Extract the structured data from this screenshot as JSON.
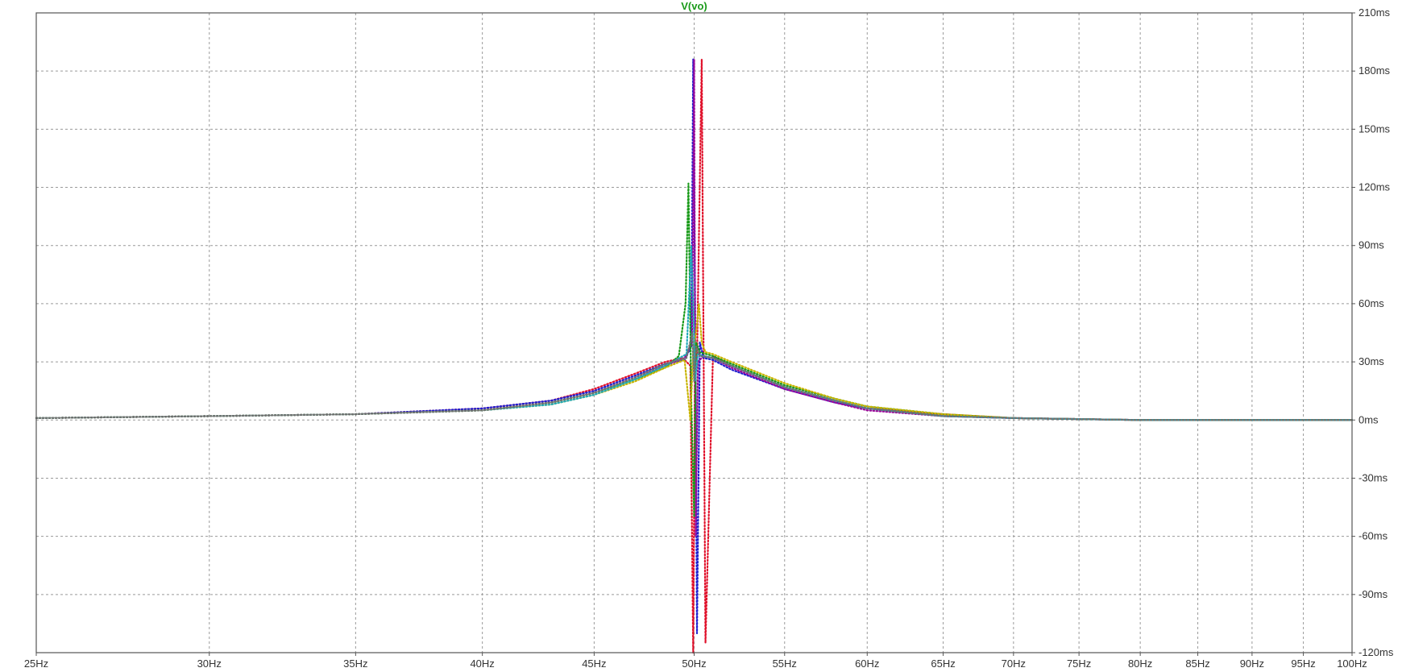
{
  "chart_data": {
    "type": "scatter",
    "title": "V(vo)",
    "title_color": "#1a9a1a",
    "x_scale": "log",
    "x_unit": "Hz",
    "y_unit": "ms",
    "xlim": [
      25,
      100
    ],
    "ylim": [
      -120,
      210
    ],
    "x_ticks": [
      {
        "value": 25,
        "label": "25Hz"
      },
      {
        "value": 30,
        "label": "30Hz"
      },
      {
        "value": 35,
        "label": "35Hz"
      },
      {
        "value": 40,
        "label": "40Hz"
      },
      {
        "value": 45,
        "label": "45Hz"
      },
      {
        "value": 50,
        "label": "50Hz"
      },
      {
        "value": 55,
        "label": "55Hz"
      },
      {
        "value": 60,
        "label": "60Hz"
      },
      {
        "value": 65,
        "label": "65Hz"
      },
      {
        "value": 70,
        "label": "70Hz"
      },
      {
        "value": 75,
        "label": "75Hz"
      },
      {
        "value": 80,
        "label": "80Hz"
      },
      {
        "value": 85,
        "label": "85Hz"
      },
      {
        "value": 90,
        "label": "90Hz"
      },
      {
        "value": 95,
        "label": "95Hz"
      },
      {
        "value": 100,
        "label": "100Hz"
      }
    ],
    "y_ticks": [
      {
        "value": 210,
        "label": "210ms"
      },
      {
        "value": 180,
        "label": "180ms"
      },
      {
        "value": 150,
        "label": "150ms"
      },
      {
        "value": 120,
        "label": "120ms"
      },
      {
        "value": 90,
        "label": "90ms"
      },
      {
        "value": 60,
        "label": "60ms"
      },
      {
        "value": 30,
        "label": "30ms"
      },
      {
        "value": 0,
        "label": "0ms"
      },
      {
        "value": -30,
        "label": "-30ms"
      },
      {
        "value": -60,
        "label": "-60ms"
      },
      {
        "value": -90,
        "label": "-90ms"
      },
      {
        "value": -120,
        "label": "-120ms"
      }
    ],
    "grid": true,
    "marker": "dotted",
    "series": [
      {
        "color": "#e0102a",
        "points": [
          [
            25,
            1
          ],
          [
            30,
            2
          ],
          [
            35,
            3
          ],
          [
            40,
            6
          ],
          [
            43,
            10
          ],
          [
            45,
            16
          ],
          [
            47,
            24
          ],
          [
            48.5,
            30
          ],
          [
            49.4,
            32
          ],
          [
            49.8,
            28
          ],
          [
            49.95,
            -120
          ],
          [
            50.0,
            -40
          ],
          [
            50.05,
            40
          ],
          [
            50.15,
            30
          ],
          [
            50.4,
            186
          ],
          [
            50.6,
            -115
          ],
          [
            51.0,
            33
          ],
          [
            52,
            28
          ],
          [
            55,
            17
          ],
          [
            58,
            10
          ],
          [
            60,
            6
          ],
          [
            65,
            3
          ],
          [
            70,
            1
          ],
          [
            80,
            0
          ],
          [
            100,
            0
          ]
        ]
      },
      {
        "color": "#2020d0",
        "points": [
          [
            25,
            1
          ],
          [
            30,
            2
          ],
          [
            35,
            3
          ],
          [
            40,
            6
          ],
          [
            43,
            10
          ],
          [
            45,
            15
          ],
          [
            47,
            23
          ],
          [
            48.5,
            29
          ],
          [
            49.5,
            31
          ],
          [
            49.85,
            38
          ],
          [
            49.95,
            186
          ],
          [
            50.05,
            60
          ],
          [
            50.15,
            -110
          ],
          [
            50.3,
            40
          ],
          [
            50.5,
            32
          ],
          [
            51,
            31
          ],
          [
            52,
            26
          ],
          [
            55,
            16
          ],
          [
            58,
            9
          ],
          [
            60,
            6
          ],
          [
            65,
            2
          ],
          [
            70,
            1
          ],
          [
            80,
            0
          ],
          [
            100,
            0
          ]
        ]
      },
      {
        "color": "#9a0a9a",
        "points": [
          [
            25,
            1
          ],
          [
            30,
            2
          ],
          [
            35,
            3
          ],
          [
            40,
            5
          ],
          [
            43,
            9
          ],
          [
            45,
            14
          ],
          [
            47,
            22
          ],
          [
            48.5,
            28
          ],
          [
            49.5,
            32
          ],
          [
            49.9,
            40
          ],
          [
            50.0,
            186
          ],
          [
            50.08,
            -60
          ],
          [
            50.2,
            30
          ],
          [
            50.5,
            33
          ],
          [
            51,
            32
          ],
          [
            52,
            27
          ],
          [
            55,
            16
          ],
          [
            58,
            9
          ],
          [
            60,
            5
          ],
          [
            65,
            2
          ],
          [
            70,
            1
          ],
          [
            80,
            0
          ],
          [
            100,
            0
          ]
        ]
      },
      {
        "color": "#1a9a1a",
        "points": [
          [
            25,
            1
          ],
          [
            30,
            2
          ],
          [
            35,
            3
          ],
          [
            40,
            5
          ],
          [
            43,
            9
          ],
          [
            45,
            14
          ],
          [
            47,
            21
          ],
          [
            48.5,
            27
          ],
          [
            49.2,
            33
          ],
          [
            49.55,
            60
          ],
          [
            49.7,
            122
          ],
          [
            49.85,
            10
          ],
          [
            50.0,
            -50
          ],
          [
            50.1,
            40
          ],
          [
            50.3,
            35
          ],
          [
            51,
            33
          ],
          [
            52,
            29
          ],
          [
            55,
            18
          ],
          [
            58,
            11
          ],
          [
            60,
            7
          ],
          [
            65,
            3
          ],
          [
            70,
            1
          ],
          [
            80,
            0
          ],
          [
            100,
            0
          ]
        ]
      },
      {
        "color": "#c8b400",
        "points": [
          [
            25,
            1
          ],
          [
            30,
            2
          ],
          [
            35,
            3
          ],
          [
            40,
            5
          ],
          [
            43,
            8
          ],
          [
            45,
            13
          ],
          [
            47,
            20
          ],
          [
            48.5,
            27
          ],
          [
            49.5,
            31
          ],
          [
            49.8,
            0
          ],
          [
            49.95,
            35
          ],
          [
            50.1,
            45
          ],
          [
            50.25,
            60
          ],
          [
            50.4,
            40
          ],
          [
            50.6,
            35
          ],
          [
            51,
            34
          ],
          [
            52,
            30
          ],
          [
            55,
            19
          ],
          [
            58,
            11
          ],
          [
            60,
            7
          ],
          [
            65,
            3
          ],
          [
            70,
            1
          ],
          [
            80,
            0
          ],
          [
            100,
            0
          ]
        ]
      },
      {
        "color": "#20a8b8",
        "points": [
          [
            25,
            1
          ],
          [
            30,
            2
          ],
          [
            35,
            3
          ],
          [
            40,
            5
          ],
          [
            43,
            8
          ],
          [
            45,
            13
          ],
          [
            47,
            21
          ],
          [
            48.5,
            28
          ],
          [
            49.6,
            34
          ],
          [
            49.85,
            90
          ],
          [
            49.95,
            60
          ],
          [
            50.05,
            20
          ],
          [
            50.2,
            34
          ],
          [
            50.5,
            33
          ],
          [
            51,
            32
          ],
          [
            52,
            28
          ],
          [
            55,
            17
          ],
          [
            58,
            10
          ],
          [
            60,
            6
          ],
          [
            65,
            2
          ],
          [
            70,
            1
          ],
          [
            80,
            0
          ],
          [
            100,
            0
          ]
        ]
      },
      {
        "color": "#707070",
        "points": [
          [
            25,
            1
          ],
          [
            30,
            2
          ],
          [
            35,
            3
          ],
          [
            40,
            5
          ],
          [
            43,
            9
          ],
          [
            45,
            14
          ],
          [
            47,
            22
          ],
          [
            48.5,
            29
          ],
          [
            49.6,
            32
          ],
          [
            49.9,
            45
          ],
          [
            50.0,
            20
          ],
          [
            50.1,
            38
          ],
          [
            50.3,
            33
          ],
          [
            51,
            32
          ],
          [
            52,
            28
          ],
          [
            55,
            17
          ],
          [
            58,
            10
          ],
          [
            60,
            6
          ],
          [
            65,
            2
          ],
          [
            70,
            1
          ],
          [
            80,
            0
          ],
          [
            100,
            0
          ]
        ]
      }
    ]
  }
}
